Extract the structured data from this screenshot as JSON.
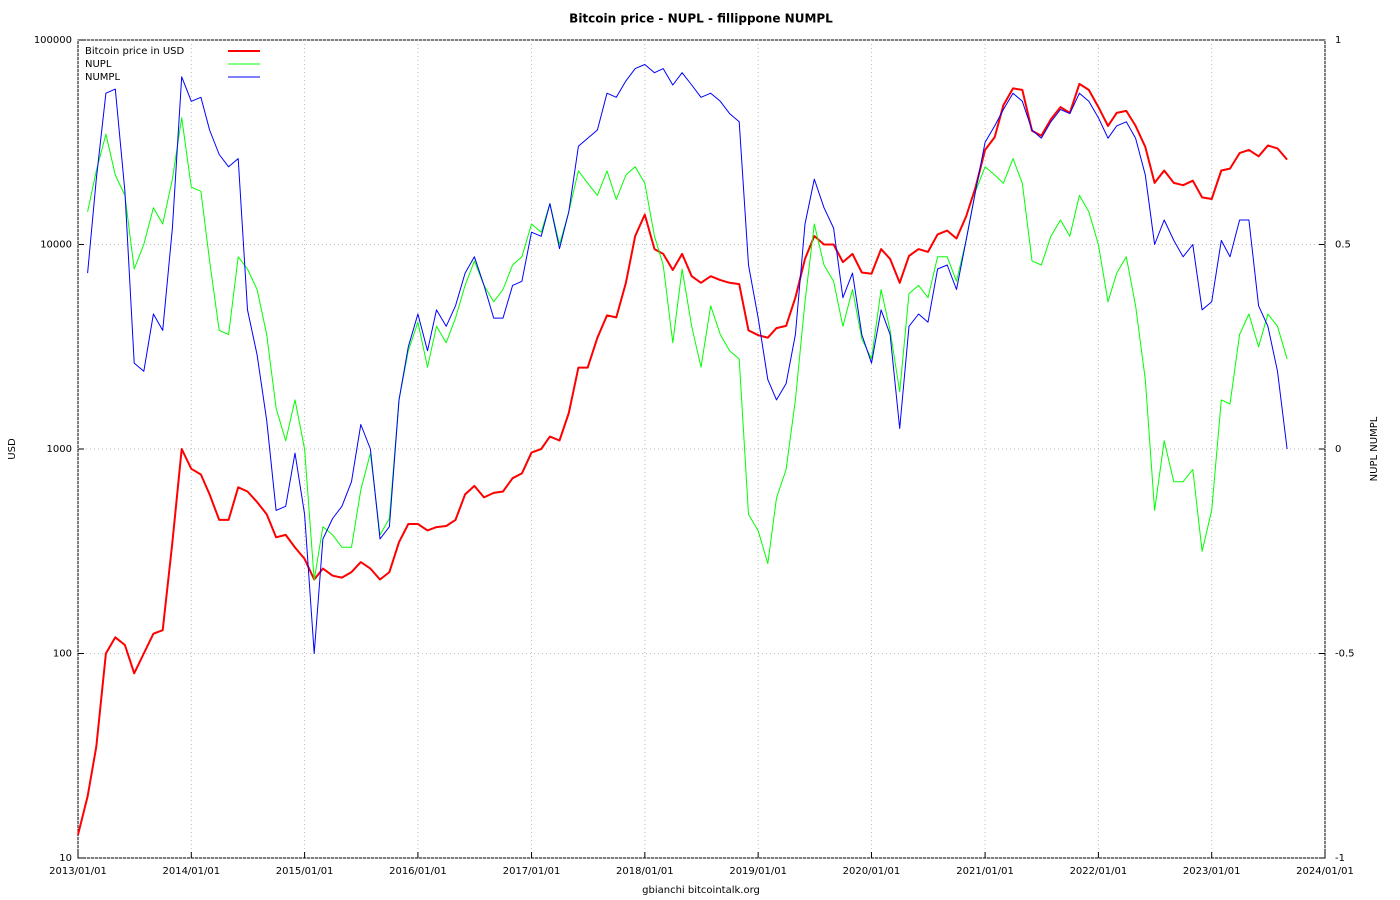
{
  "chart_data": {
    "type": "line",
    "title": "Bitcoin price - NUPL - fillippone NUMPL",
    "y_label": "USD",
    "y2_label": "NUPL NUMPL",
    "source": "gbianchi bitcointalk.org",
    "log_scale": true,
    "grid": true,
    "legend": "top-left",
    "xlim": [
      "2013/01/01",
      "2024/01/01"
    ],
    "xticks": [
      "2013/01/01",
      "2014/01/01",
      "2015/01/01",
      "2016/01/01",
      "2017/01/01",
      "2018/01/01",
      "2019/01/01",
      "2020/01/01",
      "2021/01/01",
      "2022/01/01",
      "2023/01/01",
      "2024/01/01"
    ],
    "ylim": [
      10,
      100000
    ],
    "yticks": [
      10,
      100,
      1000,
      10000,
      100000
    ],
    "y2lim": [
      -1,
      1
    ],
    "y2ticks": [
      -1,
      -0.5,
      0,
      0.5,
      1
    ],
    "x": [
      "2013/01/01",
      "2013/02/01",
      "2013/03/01",
      "2013/04/01",
      "2013/05/01",
      "2013/06/01",
      "2013/07/01",
      "2013/08/01",
      "2013/09/01",
      "2013/10/01",
      "2013/11/01",
      "2013/12/01",
      "2014/01/01",
      "2014/02/01",
      "2014/03/01",
      "2014/04/01",
      "2014/05/01",
      "2014/06/01",
      "2014/07/01",
      "2014/08/01",
      "2014/09/01",
      "2014/10/01",
      "2014/11/01",
      "2014/12/01",
      "2015/01/01",
      "2015/02/01",
      "2015/03/01",
      "2015/04/01",
      "2015/05/01",
      "2015/06/01",
      "2015/07/01",
      "2015/08/01",
      "2015/09/01",
      "2015/10/01",
      "2015/11/01",
      "2015/12/01",
      "2016/01/01",
      "2016/02/01",
      "2016/03/01",
      "2016/04/01",
      "2016/05/01",
      "2016/06/01",
      "2016/07/01",
      "2016/08/01",
      "2016/09/01",
      "2016/10/01",
      "2016/11/01",
      "2016/12/01",
      "2017/01/01",
      "2017/02/01",
      "2017/03/01",
      "2017/04/01",
      "2017/05/01",
      "2017/06/01",
      "2017/07/01",
      "2017/08/01",
      "2017/09/01",
      "2017/10/01",
      "2017/11/01",
      "2017/12/01",
      "2018/01/01",
      "2018/02/01",
      "2018/03/01",
      "2018/04/01",
      "2018/05/01",
      "2018/06/01",
      "2018/07/01",
      "2018/08/01",
      "2018/09/01",
      "2018/10/01",
      "2018/11/01",
      "2018/12/01",
      "2019/01/01",
      "2019/02/01",
      "2019/03/01",
      "2019/04/01",
      "2019/05/01",
      "2019/06/01",
      "2019/07/01",
      "2019/08/01",
      "2019/09/01",
      "2019/10/01",
      "2019/11/01",
      "2019/12/01",
      "2020/01/01",
      "2020/02/01",
      "2020/03/01",
      "2020/04/01",
      "2020/05/01",
      "2020/06/01",
      "2020/07/01",
      "2020/08/01",
      "2020/09/01",
      "2020/10/01",
      "2020/11/01",
      "2020/12/01",
      "2021/01/01",
      "2021/02/01",
      "2021/03/01",
      "2021/04/01",
      "2021/05/01",
      "2021/06/01",
      "2021/07/01",
      "2021/08/01",
      "2021/09/01",
      "2021/10/01",
      "2021/11/01",
      "2021/12/01",
      "2022/01/01",
      "2022/02/01",
      "2022/03/01",
      "2022/04/01",
      "2022/05/01",
      "2022/06/01",
      "2022/07/01",
      "2022/08/01",
      "2022/09/01",
      "2022/10/01",
      "2022/11/01",
      "2022/12/01",
      "2023/01/01",
      "2023/02/01",
      "2023/03/01",
      "2023/04/01",
      "2023/05/01",
      "2023/06/01",
      "2023/07/01",
      "2023/08/01",
      "2023/09/01"
    ],
    "series": [
      {
        "name": "Bitcoin price in USD",
        "color": "#ff0000",
        "width": 2,
        "values": [
          13,
          20,
          35,
          100,
          120,
          110,
          80,
          100,
          125,
          130,
          350,
          1000,
          800,
          750,
          600,
          450,
          450,
          650,
          620,
          550,
          480,
          370,
          380,
          330,
          290,
          230,
          260,
          240,
          235,
          250,
          280,
          260,
          230,
          250,
          350,
          430,
          430,
          400,
          415,
          420,
          450,
          600,
          660,
          580,
          610,
          620,
          720,
          760,
          960,
          1000,
          1150,
          1100,
          1500,
          2500,
          2500,
          3500,
          4500,
          4400,
          6500,
          11000,
          14000,
          9500,
          9000,
          7500,
          9000,
          7000,
          6500,
          7000,
          6700,
          6500,
          6400,
          3800,
          3600,
          3500,
          3900,
          4000,
          5500,
          8500,
          11000,
          10000,
          10000,
          8200,
          9000,
          7300,
          7200,
          9500,
          8500,
          6500,
          8800,
          9500,
          9200,
          11200,
          11700,
          10700,
          13700,
          19000,
          29000,
          33500,
          48000,
          58000,
          57000,
          36000,
          34000,
          41000,
          47000,
          44000,
          61000,
          57000,
          47000,
          38000,
          44000,
          45000,
          38000,
          30000,
          20000,
          23000,
          20000,
          19500,
          20500,
          17000,
          16700,
          23000,
          23500,
          28000,
          29000,
          27000,
          30500,
          29500,
          26000
        ]
      },
      {
        "name": "NUPL",
        "color": "#00ff00",
        "width": 1,
        "axis": "y2",
        "values": [
          null,
          0.58,
          0.68,
          0.77,
          0.67,
          0.62,
          0.44,
          0.5,
          0.59,
          0.55,
          0.66,
          0.81,
          0.64,
          0.63,
          0.46,
          0.29,
          0.28,
          0.47,
          0.44,
          0.39,
          0.28,
          0.1,
          0.02,
          0.12,
          0,
          -0.32,
          -0.19,
          -0.21,
          -0.24,
          -0.24,
          -0.1,
          -0.01,
          -0.21,
          -0.17,
          0.12,
          0.24,
          0.31,
          0.2,
          0.3,
          0.26,
          0.32,
          0.4,
          0.46,
          0.4,
          0.36,
          0.39,
          0.45,
          0.47,
          0.55,
          0.53,
          0.6,
          0.5,
          0.58,
          0.68,
          0.65,
          0.62,
          0.68,
          0.61,
          0.67,
          0.69,
          0.65,
          0.52,
          0.45,
          0.26,
          0.44,
          0.3,
          0.2,
          0.35,
          0.28,
          0.24,
          0.22,
          -0.16,
          -0.2,
          -0.28,
          -0.12,
          -0.05,
          0.12,
          0.36,
          0.55,
          0.45,
          0.41,
          0.3,
          0.39,
          0.27,
          0.22,
          0.39,
          0.29,
          0.14,
          0.38,
          0.4,
          0.37,
          0.47,
          0.47,
          0.41,
          0.51,
          0.63,
          0.69,
          0.67,
          0.65,
          0.71,
          0.65,
          0.46,
          0.45,
          0.52,
          0.56,
          0.52,
          0.62,
          0.58,
          0.5,
          0.36,
          0.43,
          0.47,
          0.35,
          0.17,
          -0.15,
          0.02,
          -0.08,
          -0.08,
          -0.05,
          -0.25,
          -0.15,
          0.12,
          0.11,
          0.28,
          0.33,
          0.25,
          0.33,
          0.3,
          0.22
        ]
      },
      {
        "name": "NUMPL",
        "color": "#0000ff",
        "width": 1,
        "axis": "y2",
        "values": [
          null,
          0.43,
          0.66,
          0.87,
          0.88,
          0.63,
          0.21,
          0.19,
          0.33,
          0.29,
          0.54,
          0.91,
          0.85,
          0.86,
          0.78,
          0.72,
          0.69,
          0.71,
          0.34,
          0.23,
          0.07,
          -0.15,
          -0.14,
          -0.01,
          -0.16,
          -0.5,
          -0.22,
          -0.17,
          -0.14,
          -0.08,
          0.06,
          0,
          -0.22,
          -0.19,
          0.12,
          0.25,
          0.33,
          0.24,
          0.34,
          0.3,
          0.35,
          0.43,
          0.47,
          0.4,
          0.32,
          0.32,
          0.4,
          0.41,
          0.53,
          0.52,
          0.6,
          0.49,
          0.58,
          0.74,
          0.76,
          0.78,
          0.87,
          0.86,
          0.9,
          0.93,
          0.94,
          0.92,
          0.93,
          0.89,
          0.92,
          0.89,
          0.86,
          0.87,
          0.85,
          0.82,
          0.8,
          0.45,
          0.32,
          0.17,
          0.12,
          0.16,
          0.28,
          0.55,
          0.66,
          0.59,
          0.54,
          0.37,
          0.43,
          0.28,
          0.21,
          0.34,
          0.28,
          0.05,
          0.3,
          0.33,
          0.31,
          0.44,
          0.45,
          0.39,
          0.51,
          0.63,
          0.75,
          0.79,
          0.83,
          0.87,
          0.85,
          0.78,
          0.76,
          0.8,
          0.83,
          0.82,
          0.87,
          0.85,
          0.81,
          0.76,
          0.79,
          0.8,
          0.76,
          0.67,
          0.5,
          0.56,
          0.51,
          0.47,
          0.5,
          0.34,
          0.36,
          0.51,
          0.47,
          0.56,
          0.56,
          0.35,
          0.3,
          0.19,
          0
        ]
      }
    ]
  }
}
